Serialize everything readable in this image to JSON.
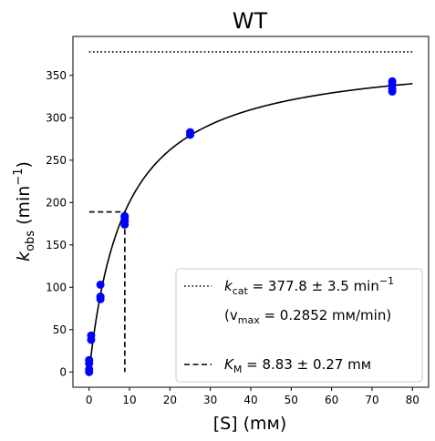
{
  "chart_data": {
    "type": "scatter",
    "title": "WT",
    "xlabel": "[S] (mм)",
    "ylabel": {
      "base": "k",
      "sub": "obs",
      "rest": " (min",
      "sup": "−1",
      "close": ")"
    },
    "xlim": [
      -4,
      84
    ],
    "ylim": [
      -18,
      396
    ],
    "xticks": [
      0,
      10,
      20,
      30,
      40,
      50,
      60,
      70,
      80
    ],
    "yticks": [
      0,
      50,
      100,
      150,
      200,
      250,
      300,
      350
    ],
    "grid": false,
    "legend_position": "lower-right",
    "colors": {
      "points": "#0000ff",
      "lines": "#000000"
    },
    "kcat": 377.8,
    "km": 8.83,
    "points": [
      {
        "x": 0,
        "y": 0
      },
      {
        "x": 0,
        "y": 3
      },
      {
        "x": 0,
        "y": 10
      },
      {
        "x": 0,
        "y": 14
      },
      {
        "x": 0.5,
        "y": 38
      },
      {
        "x": 0.5,
        "y": 43
      },
      {
        "x": 2.8,
        "y": 86
      },
      {
        "x": 2.8,
        "y": 89
      },
      {
        "x": 2.8,
        "y": 103
      },
      {
        "x": 8.8,
        "y": 174
      },
      {
        "x": 8.8,
        "y": 178
      },
      {
        "x": 8.8,
        "y": 182
      },
      {
        "x": 8.8,
        "y": 184
      },
      {
        "x": 25,
        "y": 280
      },
      {
        "x": 25,
        "y": 283
      },
      {
        "x": 75,
        "y": 331
      },
      {
        "x": 75,
        "y": 334
      },
      {
        "x": 75,
        "y": 339
      },
      {
        "x": 75,
        "y": 343
      }
    ],
    "legend": {
      "kcat_pre": "k",
      "kcat_sub": "cat",
      "kcat_mid": " = 377.8 ± 3.5 min",
      "kcat_sup": "−1",
      "vmax_pre": "(v",
      "vmax_sub": "max",
      "vmax_rest": " = 0.2852 mм/min)",
      "km_pre": "K",
      "km_sub": "M",
      "km_rest": " = 8.83 ± 0.27 mм"
    }
  }
}
